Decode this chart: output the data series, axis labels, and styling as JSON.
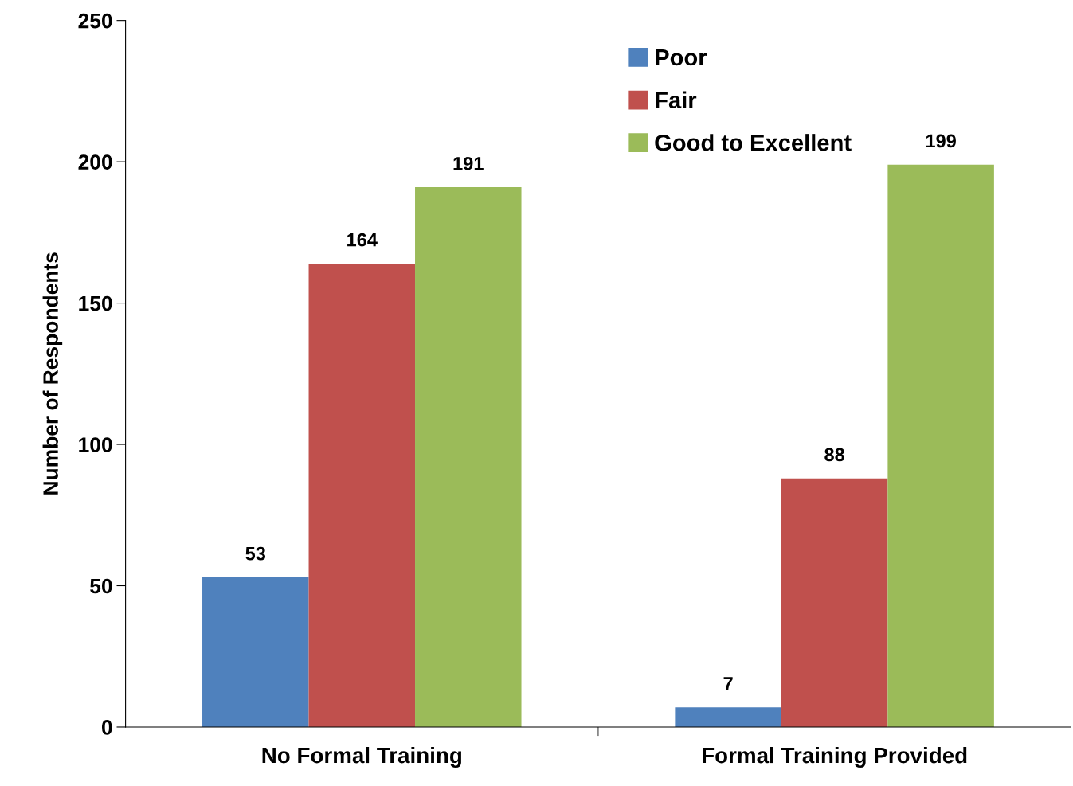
{
  "chart_data": {
    "type": "bar",
    "ylabel": "Number of Respondents",
    "categories": [
      "No Formal Training",
      "Formal Training Provided"
    ],
    "series": [
      {
        "name": "Poor",
        "color": "#4f81bd",
        "values": [
          53,
          7
        ]
      },
      {
        "name": "Fair",
        "color": "#c0504d",
        "values": [
          164,
          88
        ]
      },
      {
        "name": "Good to Excellent",
        "color": "#9bbb59",
        "values": [
          191,
          199
        ]
      }
    ],
    "ylim": [
      0,
      250
    ],
    "yticks": [
      0,
      50,
      100,
      150,
      200,
      250
    ],
    "data_labels": true,
    "legend": "top",
    "grid": false
  }
}
